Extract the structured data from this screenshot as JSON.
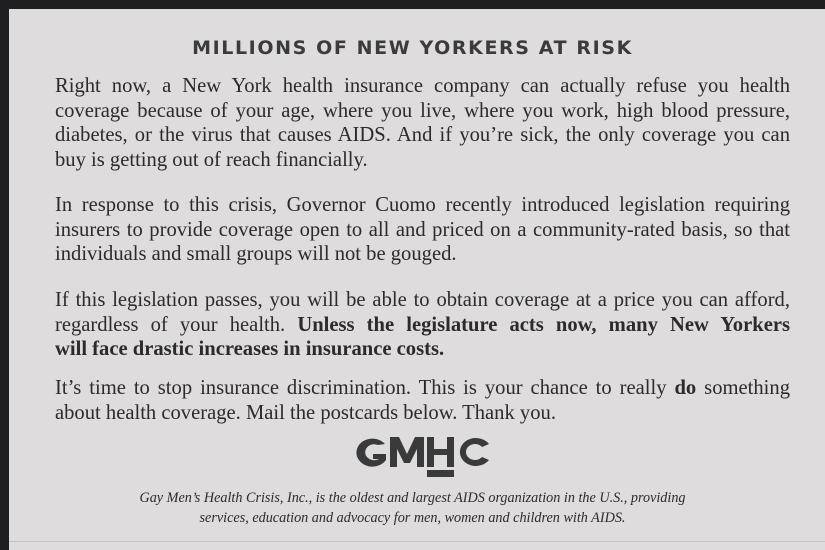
{
  "title": "MILLIONS OF NEW YORKERS AT RISK",
  "paragraphs": [
    [
      "Right now, a New York health insurance company can actually refuse you health",
      "coverage because of your age, where you live, where you work, high blood pressure,",
      "diabetes, or the virus that causes AIDS. And if you’re sick, the only coverage you can",
      "buy is getting out of reach financially."
    ],
    [
      "In response to this crisis, Governor Cuomo recently introduced legislation requiring",
      "insurers to provide coverage open to all and priced on a community-rated basis, so that",
      "individuals and small groups will not be gouged."
    ],
    {
      "line1": "If this legislation passes, you will be able to obtain coverage at a price you can afford,",
      "line2_regular": "regardless of your health. ",
      "line2_bold": "Unless the legislature acts now, many New Yorkers",
      "line3_bold": "will face drastic increases in insurance costs."
    },
    {
      "line1_regular": "It’s time to stop insurance discrimination. This is your chance to really ",
      "line1_bold": "do",
      "line1_end": " something",
      "line2": "about health coverage. Mail the postcards below. Thank you."
    }
  ],
  "logo": {
    "text": "GMHC",
    "color": "#3a393b"
  },
  "footer": [
    "Gay Men’s Health Crisis, Inc., is the oldest and largest AIDS organization in the U.S., providing",
    "services, education and advocacy for men, women and children with AIDS."
  ]
}
